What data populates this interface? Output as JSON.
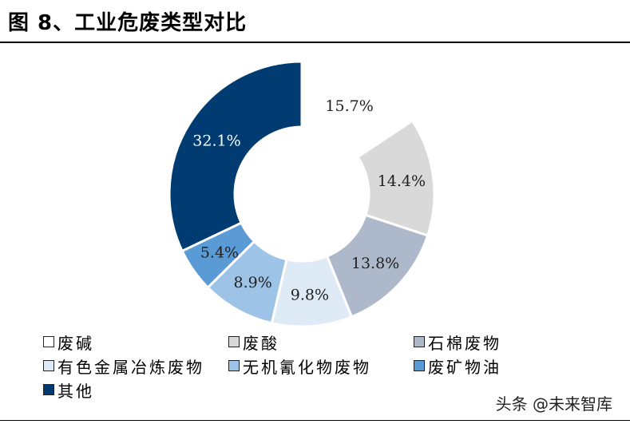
{
  "title": "图 8、工业危废类型对比",
  "watermark": "头条 @未来智库",
  "chart_data": {
    "type": "pie",
    "title": "",
    "categories": [
      "废碱",
      "废酸",
      "石棉废物",
      "有色金属冶炼废物",
      "无机氰化物废物",
      "废矿物油",
      "其他"
    ],
    "values": [
      15.7,
      14.4,
      13.8,
      9.8,
      8.9,
      5.4,
      32.1
    ],
    "labels": [
      "15.7%",
      "14.4%",
      "13.8%",
      "9.8%",
      "8.9%",
      "5.4%",
      "32.1%"
    ],
    "colors": [
      "#ffffff",
      "#d9d9d9",
      "#adb9ca",
      "#deebf7",
      "#9dc3e6",
      "#5b9bd5",
      "#003c71"
    ],
    "label_colors": [
      "#222222",
      "#222222",
      "#222222",
      "#222222",
      "#222222",
      "#222222",
      "#ffffff"
    ],
    "donut": true,
    "legend_position": "bottom"
  }
}
